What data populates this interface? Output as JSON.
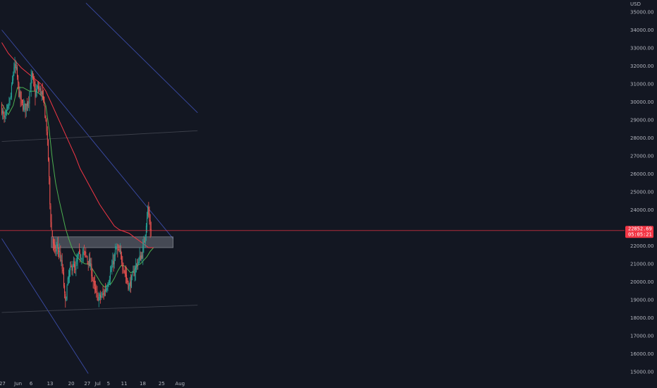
{
  "chart_data": {
    "type": "candlestick",
    "ylabel": "USD",
    "ylim": [
      14700,
      35500
    ],
    "xlim": [
      0,
      60
    ],
    "x_ticks": [
      {
        "label": "27",
        "x": 0.2
      },
      {
        "label": "Jun",
        "x": 5
      },
      {
        "label": "6",
        "x": 9
      },
      {
        "label": "13",
        "x": 14.8
      },
      {
        "label": "20",
        "x": 21.3
      },
      {
        "label": "27",
        "x": 26.2
      },
      {
        "label": "Jul",
        "x": 29.4
      },
      {
        "label": "5",
        "x": 32.7
      },
      {
        "label": "11",
        "x": 37.5
      },
      {
        "label": "18",
        "x": 43.2
      },
      {
        "label": "25",
        "x": 49
      },
      {
        "label": "Aug",
        "x": 54.6
      }
    ],
    "y_ticks": [
      "15000.00",
      "16000.00",
      "17000.00",
      "18000.00",
      "19000.00",
      "20000.00",
      "21000.00",
      "22000.00",
      "23000.00",
      "24000.00",
      "25000.00",
      "26000.00",
      "27000.00",
      "28000.00",
      "29000.00",
      "30000.00",
      "31000.00",
      "32000.00",
      "33000.00",
      "34000.00",
      "35000.00"
    ],
    "y_tick_values": [
      15000,
      16000,
      17000,
      18000,
      19000,
      20000,
      21000,
      22000,
      23000,
      24000,
      25000,
      26000,
      27000,
      28000,
      29000,
      30000,
      31000,
      32000,
      33000,
      34000,
      35000
    ],
    "current_price": {
      "value": 22852,
      "price_label": "22852.69",
      "countdown_label": "05:05:21",
      "color": "#f23645"
    },
    "ohlc_waypoints": [
      [
        0,
        29800
      ],
      [
        1,
        29000
      ],
      [
        2,
        29500
      ],
      [
        3,
        30300
      ],
      [
        4,
        32000
      ],
      [
        4.8,
        31700
      ],
      [
        5.5,
        30500
      ],
      [
        6.5,
        29800
      ],
      [
        7.5,
        29700
      ],
      [
        8.5,
        30200
      ],
      [
        9.5,
        31500
      ],
      [
        10.5,
        30400
      ],
      [
        11.3,
        30800
      ],
      [
        12.5,
        30500
      ],
      [
        13.2,
        29800
      ],
      [
        14,
        28500
      ],
      [
        14.6,
        26500
      ],
      [
        15,
        24300
      ],
      [
        15.4,
        23000
      ],
      [
        16,
        22200
      ],
      [
        16.5,
        21600
      ],
      [
        17.2,
        22000
      ],
      [
        18,
        21600
      ],
      [
        19,
        20400
      ],
      [
        19.7,
        18700
      ],
      [
        20.3,
        19800
      ],
      [
        21,
        20500
      ],
      [
        22,
        21000
      ],
      [
        22.8,
        20500
      ],
      [
        23.5,
        21400
      ],
      [
        24.5,
        21500
      ],
      [
        25.5,
        21600
      ],
      [
        26.5,
        21300
      ],
      [
        27.5,
        20800
      ],
      [
        28.5,
        19800
      ],
      [
        29.3,
        19200
      ],
      [
        30.3,
        19100
      ],
      [
        31.3,
        19300
      ],
      [
        32.3,
        19700
      ],
      [
        33.2,
        20300
      ],
      [
        34.2,
        20900
      ],
      [
        35.2,
        21800
      ],
      [
        35.8,
        21700
      ],
      [
        36.6,
        21500
      ],
      [
        37.6,
        20800
      ],
      [
        38.5,
        20200
      ],
      [
        39.2,
        19700
      ],
      [
        40.2,
        20200
      ],
      [
        41.2,
        20800
      ],
      [
        42.2,
        21200
      ],
      [
        43.2,
        21500
      ],
      [
        44,
        22300
      ],
      [
        44.5,
        23300
      ],
      [
        45,
        24100
      ],
      [
        45.4,
        23500
      ],
      [
        45.8,
        22850
      ]
    ],
    "series": [
      {
        "name": "",
        "color": "#26a69a",
        "values": "moving-average-50"
      },
      {
        "name": "",
        "color": "#ef5350",
        "values": "moving-average-200"
      }
    ],
    "indicator_lines": [
      {
        "color": "#4caf50",
        "points": [
          [
            0,
            29900
          ],
          [
            2,
            29300
          ],
          [
            3.5,
            29800
          ],
          [
            4.8,
            30800
          ],
          [
            6.5,
            30800
          ],
          [
            8.5,
            30600
          ],
          [
            10.5,
            30600
          ],
          [
            12.5,
            30300
          ],
          [
            13.5,
            29800
          ],
          [
            14.5,
            28500
          ],
          [
            15.5,
            26800
          ],
          [
            16.5,
            25500
          ],
          [
            17.5,
            24600
          ],
          [
            18.5,
            23800
          ],
          [
            19.5,
            23000
          ],
          [
            20.5,
            22400
          ],
          [
            21.5,
            21900
          ],
          [
            22.5,
            21500
          ],
          [
            23.5,
            21300
          ],
          [
            24.5,
            21100
          ],
          [
            25.5,
            21000
          ],
          [
            26.5,
            21000
          ],
          [
            27.5,
            20800
          ],
          [
            28.5,
            20500
          ],
          [
            29.5,
            20200
          ],
          [
            30.5,
            19900
          ],
          [
            31.5,
            19700
          ],
          [
            32.5,
            19800
          ],
          [
            33.5,
            19900
          ],
          [
            34.5,
            20200
          ],
          [
            35.5,
            20600
          ],
          [
            36.5,
            20900
          ],
          [
            37.5,
            20900
          ],
          [
            38.5,
            20700
          ],
          [
            39.5,
            20500
          ],
          [
            40.5,
            20600
          ],
          [
            41.5,
            20900
          ],
          [
            42.5,
            21000
          ],
          [
            43.5,
            21200
          ],
          [
            44.5,
            21400
          ],
          [
            45.5,
            21700
          ],
          [
            46.5,
            21900
          ]
        ]
      },
      {
        "color": "#f23645",
        "points": [
          [
            0,
            33300
          ],
          [
            2,
            32700
          ],
          [
            4,
            32300
          ],
          [
            6,
            31900
          ],
          [
            8,
            31600
          ],
          [
            10,
            31300
          ],
          [
            12,
            31000
          ],
          [
            13.5,
            30600
          ],
          [
            15,
            30000
          ],
          [
            16.5,
            29400
          ],
          [
            18,
            28800
          ],
          [
            19.5,
            28200
          ],
          [
            21,
            27600
          ],
          [
            22.5,
            27000
          ],
          [
            24,
            26300
          ],
          [
            25.5,
            25800
          ],
          [
            27,
            25300
          ],
          [
            28.5,
            24800
          ],
          [
            30,
            24300
          ],
          [
            31.5,
            23900
          ],
          [
            33,
            23500
          ],
          [
            34.5,
            23100
          ],
          [
            36,
            22900
          ],
          [
            37.5,
            22800
          ],
          [
            39,
            22700
          ],
          [
            40.5,
            22500
          ],
          [
            42,
            22300
          ],
          [
            43.5,
            22100
          ],
          [
            45,
            21900
          ],
          [
            46.5,
            21900
          ]
        ]
      }
    ],
    "trend_lines": [
      {
        "color": "#3f51b5",
        "points": [
          [
            0,
            34000
          ],
          [
            52.5,
            22400
          ]
        ]
      },
      {
        "color": "#3f51b5",
        "points": [
          [
            25.8,
            35500
          ],
          [
            60,
            29400
          ]
        ]
      },
      {
        "color": "#3f51b5",
        "points": [
          [
            0,
            22400
          ],
          [
            26.5,
            14900
          ]
        ]
      },
      {
        "color": "#434651",
        "points": [
          [
            0,
            27800
          ],
          [
            60,
            28400
          ]
        ]
      },
      {
        "color": "#434651",
        "points": [
          [
            0,
            18300
          ],
          [
            60,
            18700
          ]
        ]
      }
    ],
    "zones": [
      {
        "color": "#787b86",
        "x": [
          15.2,
          52.5
        ],
        "y": [
          21900,
          22500
        ]
      }
    ],
    "up_color": "#26a69a",
    "down_color": "#ef5350",
    "grid": false,
    "legend": "none"
  }
}
